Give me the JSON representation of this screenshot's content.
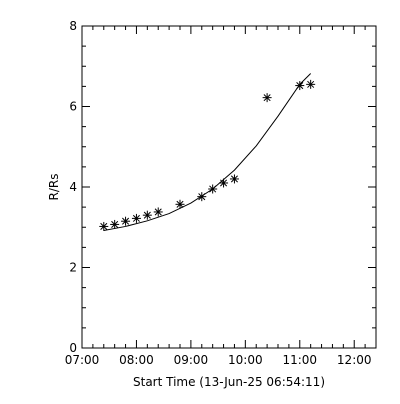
{
  "chart_data": {
    "type": "scatter",
    "title": "",
    "xlabel": "Start Time (13-Jun-25 06:54:11)",
    "ylabel": "R/Rs",
    "xlim": [
      "07:00",
      "12:24"
    ],
    "ylim": [
      0,
      8
    ],
    "x_ticks": [
      "07:00",
      "08:00",
      "09:00",
      "10:00",
      "11:00",
      "12:00"
    ],
    "y_ticks": [
      0,
      2,
      4,
      6,
      8
    ],
    "grid": false,
    "legend": "none",
    "series": [
      {
        "marker": "asterisk",
        "x": [
          "07:24",
          "07:36",
          "07:48",
          "08:00",
          "08:12",
          "08:24",
          "08:48",
          "09:12",
          "09:24",
          "09:36",
          "09:48",
          "10:24",
          "11:00",
          "11:12"
        ],
        "y": [
          3.02,
          3.07,
          3.15,
          3.22,
          3.3,
          3.38,
          3.57,
          3.76,
          3.95,
          4.1,
          4.2,
          6.22,
          6.52,
          6.55
        ]
      }
    ],
    "fit_line": {
      "type": "curve",
      "x": [
        "07:24",
        "07:48",
        "08:12",
        "08:36",
        "09:00",
        "09:24",
        "09:48",
        "10:12",
        "10:36",
        "11:00",
        "11:12"
      ],
      "y": [
        2.92,
        3.02,
        3.16,
        3.34,
        3.6,
        3.95,
        4.42,
        5.02,
        5.76,
        6.55,
        6.82
      ]
    },
    "colors": {
      "axes": "#000000",
      "markers": "#000000",
      "line": "#000000",
      "background": "#ffffff"
    }
  }
}
